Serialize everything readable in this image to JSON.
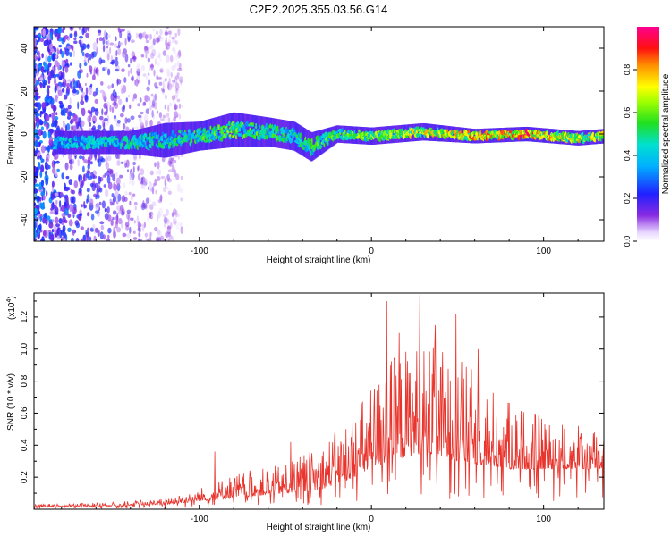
{
  "title": "C2E2.2025.355.03.56.G14",
  "chart_data": [
    {
      "type": "heatmap",
      "name": "spectrogram",
      "xlabel": "Height of straight line (km)",
      "ylabel": "Frequency (Hz)",
      "xlim": [
        -196,
        135
      ],
      "ylim": [
        -50,
        50
      ],
      "x_ticks": [
        -100,
        0,
        100
      ],
      "x_tick_labels": [
        "-100",
        "0",
        "100"
      ],
      "y_ticks": [
        -40,
        -20,
        0,
        20,
        40
      ],
      "y_tick_labels": [
        "-40",
        "-20",
        "0",
        "20",
        "40"
      ],
      "colorbar": {
        "label": "Normalized spectral amplitude",
        "range": [
          0,
          1
        ],
        "ticks": [
          0.0,
          0.2,
          0.4,
          0.6,
          0.8
        ],
        "tick_labels": [
          "0.0",
          "0.2",
          "0.4",
          "0.6",
          "0.8"
        ],
        "colormap": "rainbow (white, violet, blue, cyan, green, yellow, orange, red, magenta)"
      },
      "signal_band": [
        {
          "x": -165,
          "center": -4,
          "halfwidth": 4,
          "amp": 0.45
        },
        {
          "x": -140,
          "center": -4,
          "halfwidth": 4,
          "amp": 0.5
        },
        {
          "x": -120,
          "center": -3,
          "halfwidth": 6,
          "amp": 0.5
        },
        {
          "x": -100,
          "center": -1,
          "halfwidth": 5,
          "amp": 0.55
        },
        {
          "x": -80,
          "center": 2,
          "halfwidth": 6,
          "amp": 0.6
        },
        {
          "x": -60,
          "center": 1,
          "halfwidth": 5,
          "amp": 0.55
        },
        {
          "x": -45,
          "center": -1,
          "halfwidth": 5,
          "amp": 0.55
        },
        {
          "x": -35,
          "center": -6,
          "halfwidth": 5,
          "amp": 0.55
        },
        {
          "x": -20,
          "center": 0,
          "halfwidth": 3,
          "amp": 0.6
        },
        {
          "x": 0,
          "center": -1,
          "halfwidth": 3,
          "amp": 0.65
        },
        {
          "x": 30,
          "center": 1,
          "halfwidth": 3,
          "amp": 0.75
        },
        {
          "x": 60,
          "center": -1,
          "halfwidth": 2.5,
          "amp": 0.8
        },
        {
          "x": 90,
          "center": 0,
          "halfwidth": 2.5,
          "amp": 0.9
        },
        {
          "x": 120,
          "center": -2,
          "halfwidth": 2.5,
          "amp": 0.75
        },
        {
          "x": 135,
          "center": -1,
          "halfwidth": 2.5,
          "amp": 0.7
        }
      ],
      "noise_region": {
        "x_from": -196,
        "x_to": -110,
        "amp": 0.35
      }
    },
    {
      "type": "line",
      "name": "snr",
      "xlabel": "Height of straight line (km)",
      "ylabel": "SNR (10 * v/v)",
      "y_multiplier_label": "(x10",
      "y_multiplier_exp": "4",
      "y_multiplier_close": ")",
      "xlim": [
        -196,
        135
      ],
      "ylim": [
        0,
        1.35
      ],
      "x_ticks": [
        -100,
        0,
        100
      ],
      "x_tick_labels": [
        "-100",
        "0",
        "100"
      ],
      "y_ticks": [
        0.2,
        0.4,
        0.6,
        0.8,
        1.0,
        1.2
      ],
      "y_tick_labels": [
        "0.2",
        "0.4",
        "0.6",
        "0.8",
        "1.0",
        "1.2"
      ],
      "color": "#e8342c",
      "envelope": [
        {
          "x": -196,
          "base": 0.015,
          "peak": 0.03
        },
        {
          "x": -150,
          "base": 0.02,
          "peak": 0.04
        },
        {
          "x": -120,
          "base": 0.03,
          "peak": 0.06
        },
        {
          "x": -100,
          "base": 0.05,
          "peak": 0.12
        },
        {
          "x": -80,
          "base": 0.07,
          "peak": 0.2
        },
        {
          "x": -50,
          "base": 0.1,
          "peak": 0.25
        },
        {
          "x": -30,
          "base": 0.12,
          "peak": 0.35
        },
        {
          "x": -10,
          "base": 0.2,
          "peak": 0.55
        },
        {
          "x": 10,
          "base": 0.3,
          "peak": 0.85
        },
        {
          "x": 30,
          "base": 0.35,
          "peak": 0.95
        },
        {
          "x": 50,
          "base": 0.3,
          "peak": 0.85
        },
        {
          "x": 80,
          "base": 0.25,
          "peak": 0.6
        },
        {
          "x": 110,
          "base": 0.25,
          "peak": 0.5
        },
        {
          "x": 135,
          "base": 0.25,
          "peak": 0.45
        }
      ],
      "spikes": [
        {
          "x": -91,
          "y": 0.36
        },
        {
          "x": -47,
          "y": 0.42
        },
        {
          "x": 9,
          "y": 1.3
        },
        {
          "x": 28,
          "y": 1.34
        },
        {
          "x": 49,
          "y": 1.22
        },
        {
          "x": 16,
          "y": 1.1
        },
        {
          "x": 37,
          "y": 1.15
        },
        {
          "x": 62,
          "y": 1.0
        }
      ]
    }
  ]
}
